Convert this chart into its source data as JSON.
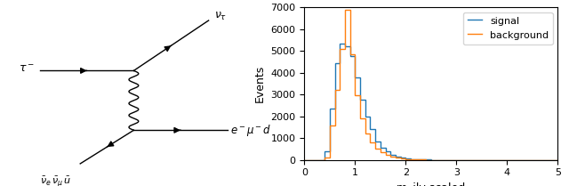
{
  "signal_vals": [
    0,
    380,
    2350,
    4450,
    5350,
    5200,
    4750,
    3800,
    2750,
    2000,
    1400,
    850,
    550,
    380,
    220,
    150,
    100,
    70,
    40,
    25,
    15,
    10,
    5,
    3,
    2,
    1,
    0,
    0,
    0,
    0,
    0,
    0,
    0,
    0,
    0,
    0,
    0,
    0,
    0,
    0,
    0,
    0,
    0,
    0,
    0,
    0,
    0
  ],
  "background_vals": [
    0,
    120,
    1600,
    3200,
    5100,
    6900,
    4850,
    2980,
    1900,
    1200,
    800,
    520,
    340,
    220,
    150,
    100,
    65,
    40,
    25,
    15,
    10,
    6,
    4,
    2,
    1,
    1,
    0,
    0,
    0,
    0,
    0,
    0,
    0,
    0,
    0,
    0,
    0,
    0,
    0,
    0,
    0,
    0,
    0,
    0,
    0,
    0,
    0
  ],
  "signal_color": "#1f77b4",
  "background_color": "#ff7f0e",
  "xlabel": "m_jlv scaled",
  "ylabel": "Events",
  "xlim": [
    0,
    5
  ],
  "ylim": [
    0,
    7000
  ],
  "yticks": [
    0,
    1000,
    2000,
    3000,
    4000,
    5000,
    6000,
    7000
  ],
  "xticks": [
    0,
    1,
    2,
    3,
    4,
    5
  ],
  "legend_signal": "signal",
  "legend_background": "background",
  "bin_width": 0.1,
  "figsize": [
    6.4,
    2.09
  ],
  "dpi": 100,
  "feynman": {
    "tau_label": "$\\tau^-$",
    "nu_tau_label": "$\\nu_\\tau$",
    "outgoing_label": "$e^-\\mu^-d$",
    "bottom_label": "$\\bar{\\nu}_e\\,\\bar{\\nu}_{\\mu}\\,\\bar{u}$"
  }
}
